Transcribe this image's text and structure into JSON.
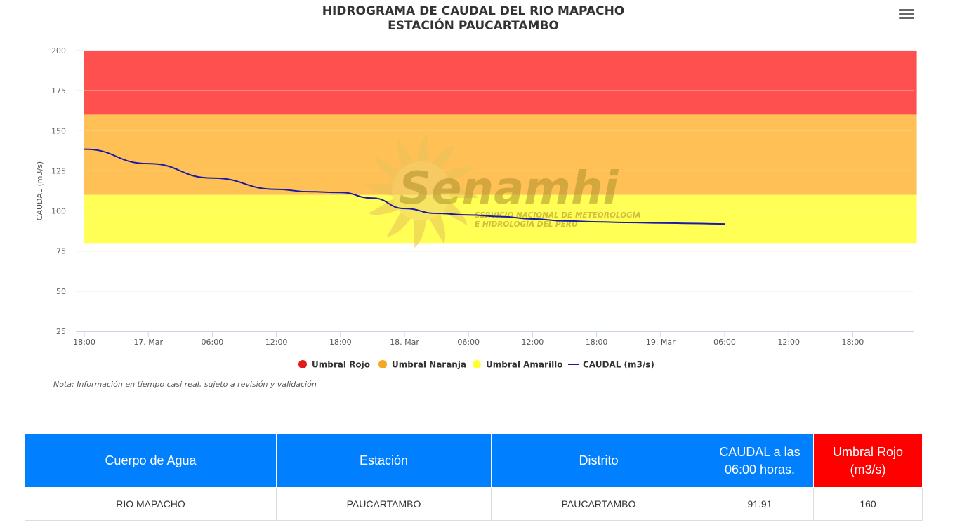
{
  "chart_data": {
    "type": "line",
    "title": "HIDROGRAMA DE CAUDAL DEL RIO MAPACHO",
    "subtitle": "ESTACIÓN PAUCARTAMBO",
    "ylabel": "CAUDAL (m3/s)",
    "xlabel": "",
    "ylim": [
      25,
      200
    ],
    "yticks": [
      "25",
      "50",
      "75",
      "100",
      "125",
      "150",
      "175",
      "200"
    ],
    "xticks": [
      "18:00",
      "17. Mar",
      "06:00",
      "12:00",
      "18:00",
      "18. Mar",
      "06:00",
      "12:00",
      "18:00",
      "19. Mar",
      "06:00",
      "12:00",
      "18:00"
    ],
    "xlim_hours": [
      0,
      78
    ],
    "grid": true,
    "legend_position": "bottom-center",
    "bands": [
      {
        "name": "Umbral Rojo",
        "from": 160,
        "to": 200,
        "color": "#ff5050"
      },
      {
        "name": "Umbral Naranja",
        "from": 110,
        "to": 160,
        "color": "#ffc155"
      },
      {
        "name": "Umbral Amarillo",
        "from": 80,
        "to": 110,
        "color": "#ffff55"
      }
    ],
    "legend": [
      {
        "name": "Umbral Rojo",
        "color": "#e31a1a",
        "kind": "dot"
      },
      {
        "name": "Umbral Naranja",
        "color": "#f5a623",
        "kind": "dot"
      },
      {
        "name": "Umbral Amarillo",
        "color": "#ffff33",
        "kind": "dot"
      },
      {
        "name": "CAUDAL (m3/s)",
        "color": "#1a1aa8",
        "kind": "line"
      }
    ],
    "series": [
      {
        "name": "CAUDAL (m3/s)",
        "color": "#1a1aa8",
        "x": [
          0,
          6,
          12,
          18,
          21,
          24,
          27,
          30,
          33,
          36,
          39,
          42,
          45,
          48,
          51,
          54,
          57,
          60
        ],
        "values": [
          138.5,
          129.5,
          120.5,
          113.5,
          112,
          111.5,
          108,
          101.5,
          98.5,
          97.5,
          96.5,
          95,
          93.8,
          93.2,
          92.8,
          92.5,
          92.2,
          91.91
        ]
      }
    ]
  },
  "watermark": {
    "brand": "Senamhi",
    "tagline_1": "SERVICIO NACIONAL DE METEOROLOGÍA",
    "tagline_2": "E HIDROLOGÍA DEL PERÚ"
  },
  "menu_icon": "hamburger-menu-icon",
  "note": "Nota: Información en tiempo casi real, sujeto a revisión y validación",
  "table": {
    "headers": [
      "Cuerpo de Agua",
      "Estación",
      "Distrito",
      "CAUDAL a las 06:00 horas.",
      "Umbral Rojo (m3/s)"
    ],
    "row": [
      "RIO MAPACHO",
      "PAUCARTAMBO",
      "PAUCARTAMBO",
      "91.91",
      "160"
    ],
    "header_color": "#0080ff",
    "alert_color": "#ff0000"
  }
}
